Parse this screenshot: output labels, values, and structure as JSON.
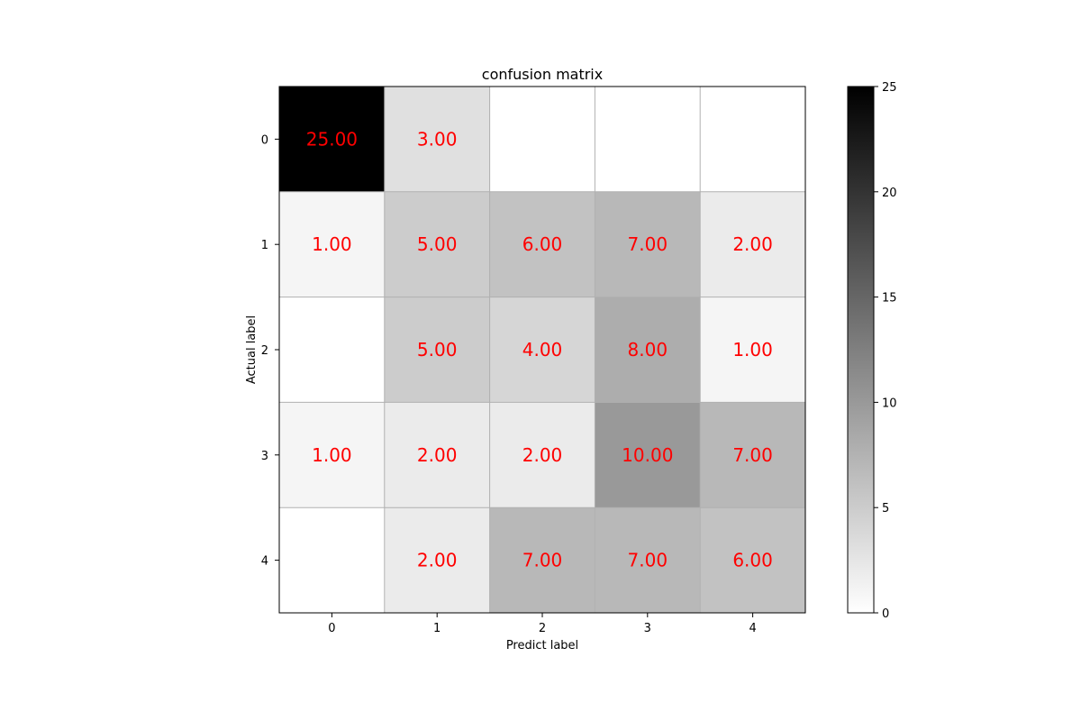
{
  "chart_data": {
    "type": "heatmap",
    "title": "confusion matrix",
    "xlabel": "Predict label",
    "ylabel": "Actual label",
    "x_categories": [
      "0",
      "1",
      "2",
      "3",
      "4"
    ],
    "y_categories": [
      "0",
      "1",
      "2",
      "3",
      "4"
    ],
    "matrix": [
      [
        25,
        3,
        0,
        0,
        0
      ],
      [
        1,
        5,
        6,
        7,
        2
      ],
      [
        0,
        5,
        4,
        8,
        1
      ],
      [
        1,
        2,
        2,
        10,
        7
      ],
      [
        0,
        2,
        7,
        7,
        6
      ]
    ],
    "cell_labels": [
      [
        "25.00",
        "3.00",
        "",
        "",
        ""
      ],
      [
        "1.00",
        "5.00",
        "6.00",
        "7.00",
        "2.00"
      ],
      [
        "",
        "5.00",
        "4.00",
        "8.00",
        "1.00"
      ],
      [
        "1.00",
        "2.00",
        "2.00",
        "10.00",
        "7.00"
      ],
      [
        "",
        "2.00",
        "7.00",
        "7.00",
        "6.00"
      ]
    ],
    "colorbar": {
      "min": 0,
      "max": 25,
      "ticks": [
        "0",
        "5",
        "10",
        "15",
        "20",
        "25"
      ],
      "colormap": "gray_r"
    },
    "grid": true,
    "label_color": "#ff0000"
  }
}
